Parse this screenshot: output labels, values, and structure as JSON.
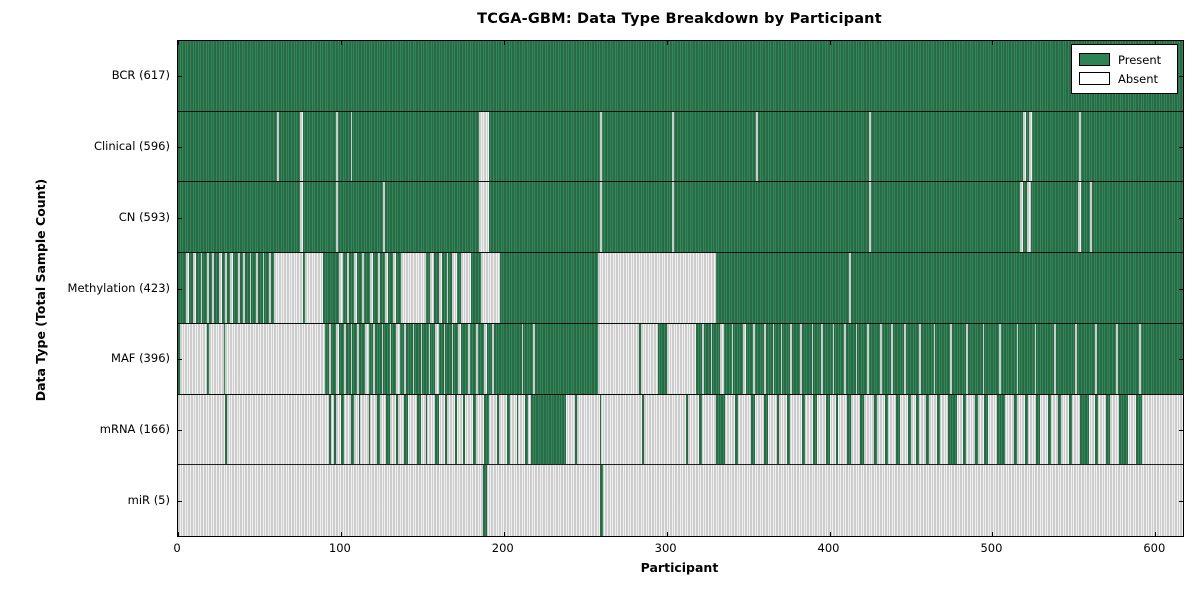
{
  "title": "TCGA-GBM: Data Type Breakdown by Participant",
  "chart_data": {
    "type": "heatmap",
    "title": "TCGA-GBM: Data Type Breakdown by Participant",
    "xlabel": "Participant",
    "ylabel": "Data Type (Total Sample Count)",
    "x_range": [
      0,
      617
    ],
    "x_ticks": [
      0,
      100,
      200,
      300,
      400,
      500,
      600
    ],
    "total_participants": 617,
    "grid": false,
    "legend": {
      "position": "upper right",
      "entries": [
        {
          "label": "Present",
          "color": "#2e8355"
        },
        {
          "label": "Absent",
          "color": "#ffffff"
        }
      ]
    },
    "colors": {
      "present": "#2e8355",
      "absent": "#f1f1f1",
      "bar_edge": "#000000",
      "border": "#000000"
    },
    "rows": [
      {
        "label": "BCR (617)",
        "data_type": "BCR",
        "present_count": 617,
        "absent_segments": []
      },
      {
        "label": "Clinical (596)",
        "data_type": "Clinical",
        "present_count": 596,
        "absent_segments": [
          [
            61,
            62
          ],
          [
            75,
            76.5
          ],
          [
            97,
            98
          ],
          [
            106,
            107
          ],
          [
            185,
            191
          ],
          [
            259,
            260.5
          ],
          [
            303,
            304.5
          ],
          [
            355,
            356
          ],
          [
            424,
            425.5
          ],
          [
            519,
            520.5
          ],
          [
            522.5,
            524
          ],
          [
            553,
            554.5
          ]
        ]
      },
      {
        "label": "CN (593)",
        "data_type": "CN",
        "present_count": 593,
        "absent_segments": [
          [
            75,
            76.5
          ],
          [
            97,
            98
          ],
          [
            126,
            127
          ],
          [
            185,
            191
          ],
          [
            259,
            260.5
          ],
          [
            303,
            304.5
          ],
          [
            424,
            425.5
          ],
          [
            517,
            519
          ],
          [
            521.5,
            523.5
          ],
          [
            552.5,
            554.5
          ],
          [
            560,
            561
          ]
        ]
      },
      {
        "label": "Methylation (423)",
        "data_type": "Methylation",
        "present_count": 423,
        "absent_segments": [
          [
            5,
            7
          ],
          [
            9,
            11
          ],
          [
            14,
            15
          ],
          [
            18,
            19
          ],
          [
            21,
            22
          ],
          [
            25,
            27
          ],
          [
            29,
            30
          ],
          [
            32,
            34
          ],
          [
            37,
            38
          ],
          [
            40,
            41
          ],
          [
            44,
            45
          ],
          [
            48,
            49
          ],
          [
            52,
            53
          ],
          [
            56,
            57
          ],
          [
            59,
            77
          ],
          [
            78,
            89
          ],
          [
            99,
            101
          ],
          [
            104,
            105
          ],
          [
            108,
            110
          ],
          [
            113,
            114
          ],
          [
            118,
            120
          ],
          [
            123,
            124
          ],
          [
            127,
            129
          ],
          [
            132,
            134
          ],
          [
            137,
            152
          ],
          [
            155,
            157
          ],
          [
            160,
            162
          ],
          [
            165,
            166
          ],
          [
            168,
            171
          ],
          [
            174,
            180
          ],
          [
            186,
            198
          ],
          [
            258,
            330
          ],
          [
            412,
            413
          ]
        ]
      },
      {
        "label": "MAF (396)",
        "data_type": "MAF",
        "present_count": 396,
        "absent_segments": [
          [
            1,
            18
          ],
          [
            19,
            28
          ],
          [
            29,
            90
          ],
          [
            93,
            94
          ],
          [
            97,
            99
          ],
          [
            102,
            103
          ],
          [
            106,
            107
          ],
          [
            110,
            111
          ],
          [
            115,
            117
          ],
          [
            120,
            121
          ],
          [
            125,
            126
          ],
          [
            130,
            131
          ],
          [
            134,
            136
          ],
          [
            139,
            140
          ],
          [
            144,
            145
          ],
          [
            149,
            150
          ],
          [
            154,
            155
          ],
          [
            158,
            160
          ],
          [
            163,
            164
          ],
          [
            168,
            169
          ],
          [
            172,
            174
          ],
          [
            178,
            179
          ],
          [
            183,
            184
          ],
          [
            188,
            190
          ],
          [
            193,
            194
          ],
          [
            211,
            212
          ],
          [
            218,
            219
          ],
          [
            258,
            283
          ],
          [
            284,
            295
          ],
          [
            300,
            318
          ],
          [
            322,
            323
          ],
          [
            327,
            328
          ],
          [
            333,
            335
          ],
          [
            340,
            341
          ],
          [
            347,
            349
          ],
          [
            353,
            354
          ],
          [
            360,
            361
          ],
          [
            365,
            366
          ],
          [
            370,
            371
          ],
          [
            376,
            377
          ],
          [
            382,
            383
          ],
          [
            389,
            390
          ],
          [
            395,
            396
          ],
          [
            402,
            403
          ],
          [
            409,
            410
          ],
          [
            416,
            417
          ],
          [
            423,
            424
          ],
          [
            431,
            432
          ],
          [
            438,
            439
          ],
          [
            446,
            447
          ],
          [
            455,
            456
          ],
          [
            464,
            465
          ],
          [
            474,
            475
          ],
          [
            484,
            485
          ],
          [
            494,
            495
          ],
          [
            504,
            505
          ],
          [
            515,
            516
          ],
          [
            526,
            527
          ],
          [
            538,
            539
          ],
          [
            551,
            552
          ],
          [
            563,
            564
          ],
          [
            576,
            577
          ],
          [
            590,
            591
          ]
        ]
      },
      {
        "label": "mRNA (166)",
        "data_type": "mRNA",
        "present_count": 166,
        "present_segments": [
          [
            29,
            30
          ],
          [
            93,
            94
          ],
          [
            96,
            97
          ],
          [
            100,
            102
          ],
          [
            106,
            108
          ],
          [
            111,
            112
          ],
          [
            117,
            118
          ],
          [
            122,
            124
          ],
          [
            128,
            130
          ],
          [
            134,
            135
          ],
          [
            139,
            141
          ],
          [
            147,
            149
          ],
          [
            152,
            153
          ],
          [
            158,
            160
          ],
          [
            164,
            165
          ],
          [
            170,
            171
          ],
          [
            175,
            176
          ],
          [
            181,
            183
          ],
          [
            188,
            191
          ],
          [
            196,
            197
          ],
          [
            202,
            204
          ],
          [
            208,
            209
          ],
          [
            213,
            215
          ],
          [
            217,
            238
          ],
          [
            244,
            245
          ],
          [
            259,
            260
          ],
          [
            285,
            286
          ],
          [
            312,
            313
          ],
          [
            320,
            322
          ],
          [
            330,
            336
          ],
          [
            342,
            344
          ],
          [
            352,
            354
          ],
          [
            360,
            362
          ],
          [
            368,
            369
          ],
          [
            374,
            376
          ],
          [
            383,
            385
          ],
          [
            390,
            392
          ],
          [
            398,
            400
          ],
          [
            404,
            405
          ],
          [
            411,
            413
          ],
          [
            419,
            421
          ],
          [
            427,
            429
          ],
          [
            434,
            436
          ],
          [
            441,
            443
          ],
          [
            448,
            450
          ],
          [
            453,
            455
          ],
          [
            459,
            461
          ],
          [
            466,
            468
          ],
          [
            473,
            478
          ],
          [
            482,
            484
          ],
          [
            489,
            491
          ],
          [
            495,
            497
          ],
          [
            503,
            508
          ],
          [
            513,
            515
          ],
          [
            520,
            522
          ],
          [
            527,
            529
          ],
          [
            534,
            536
          ],
          [
            540,
            542
          ],
          [
            547,
            549
          ],
          [
            554,
            559
          ],
          [
            563,
            565
          ],
          [
            570,
            572
          ],
          [
            578,
            583
          ],
          [
            588,
            592
          ]
        ]
      },
      {
        "label": "miR (5)",
        "data_type": "miR",
        "present_count": 5,
        "present_segments": [
          [
            187,
            190
          ],
          [
            259,
            261
          ]
        ]
      }
    ]
  }
}
